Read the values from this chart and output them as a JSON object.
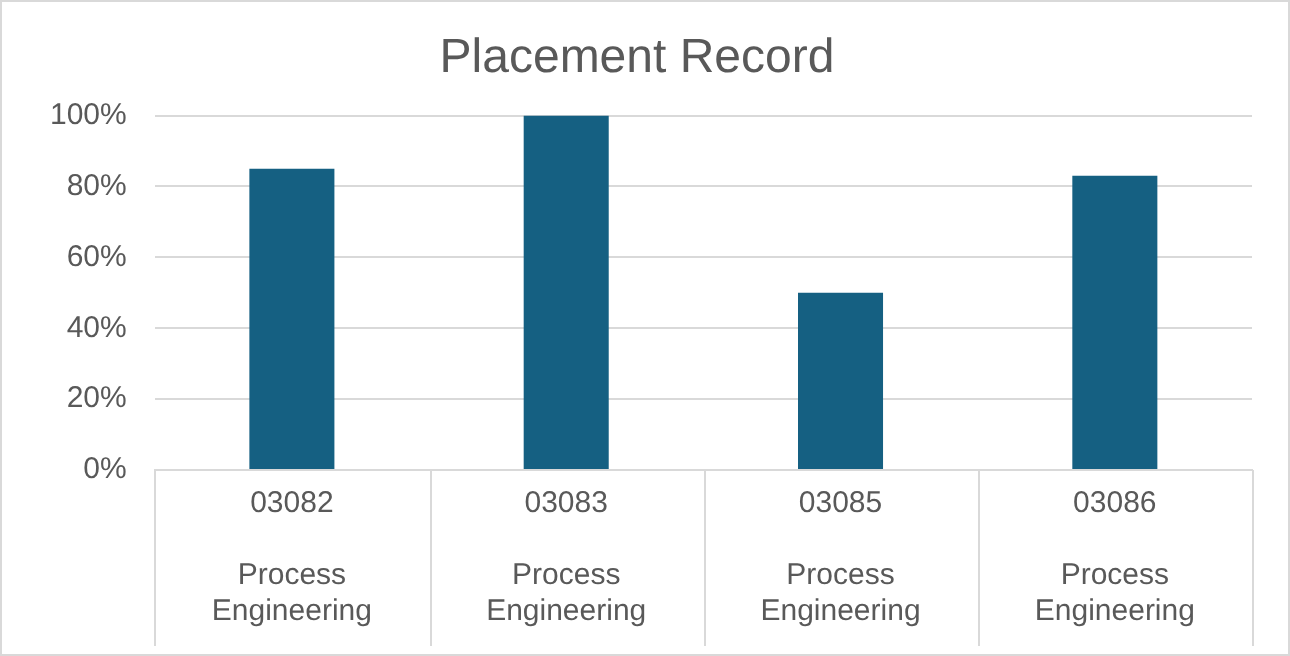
{
  "chart_data": {
    "type": "bar",
    "title": "Placement Record",
    "categories": [
      "03082\nProcess Engineering",
      "03083\nProcess Engineering",
      "03085\nProcess Engineering",
      "03086\nProcess Engineering"
    ],
    "values": [
      85,
      100,
      50,
      83
    ],
    "color": "#156082",
    "ylim": [
      0,
      100
    ],
    "yticks": [
      {
        "value": 0,
        "label": "0%"
      },
      {
        "value": 20,
        "label": "20%"
      },
      {
        "value": 40,
        "label": "40%"
      },
      {
        "value": 60,
        "label": "60%"
      },
      {
        "value": 80,
        "label": "80%"
      },
      {
        "value": 100,
        "label": "100%"
      }
    ],
    "grid": "y",
    "legend": false
  }
}
